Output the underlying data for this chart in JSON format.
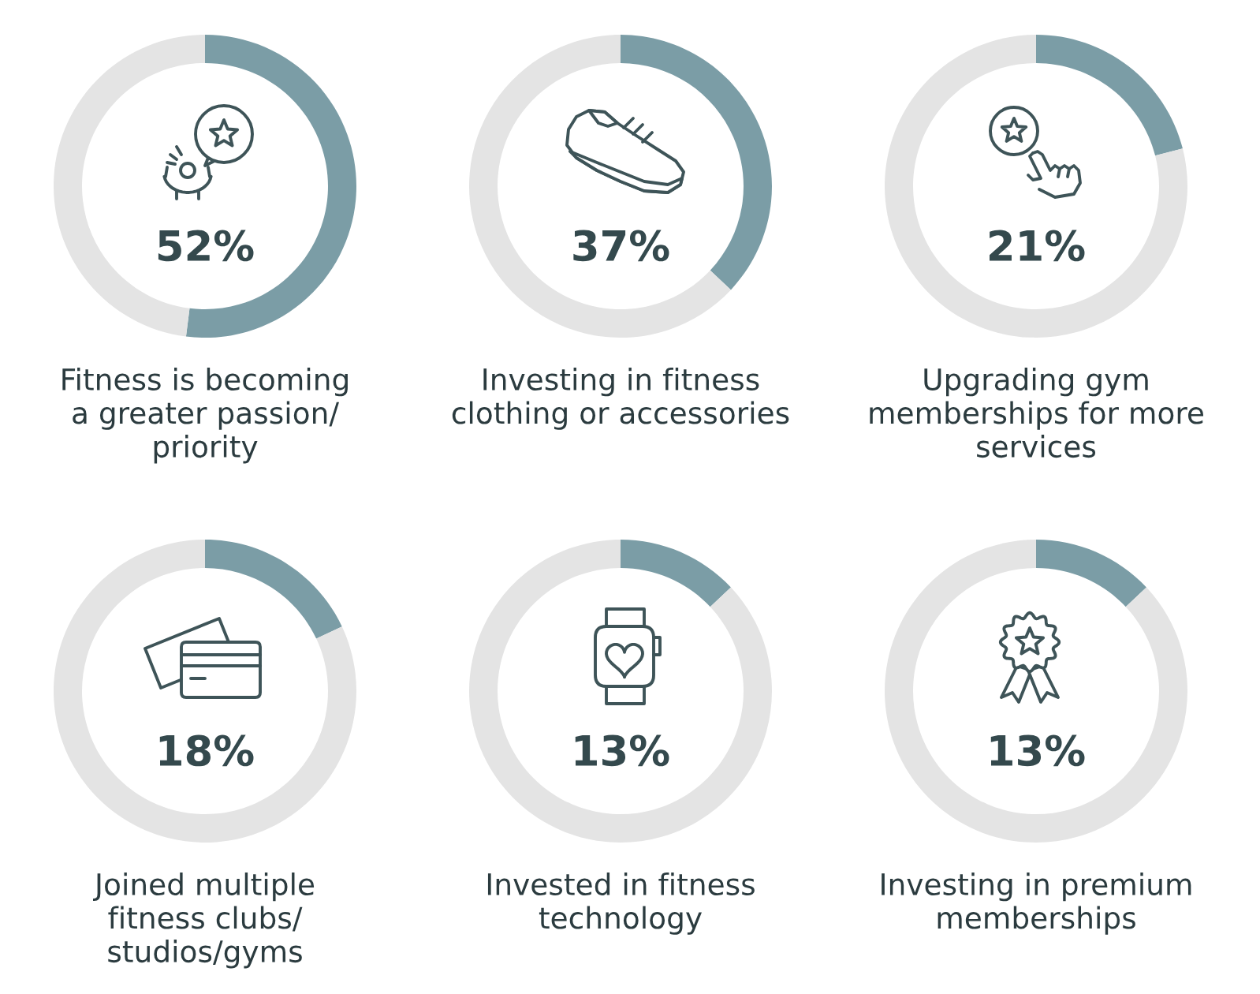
{
  "chart_data": [
    {
      "type": "donut",
      "title": "Fitness is becoming\na greater passion/\npriority",
      "categories": [
        null,
        null
      ],
      "values": [
        52,
        48
      ],
      "colors": [
        "#7b9da6",
        "#e4e4e4"
      ],
      "annotations": [
        "52%"
      ]
    },
    {
      "type": "donut",
      "title": "Investing in fitness\nclothing or accessories",
      "categories": [
        null,
        null
      ],
      "values": [
        37,
        63
      ],
      "colors": [
        "#7b9da6",
        "#e4e4e4"
      ],
      "annotations": [
        "37%"
      ]
    },
    {
      "type": "donut",
      "title": "Upgrading gym\nmemberships for more\nservices",
      "categories": [
        null,
        null
      ],
      "values": [
        21,
        79
      ],
      "colors": [
        "#7b9da6",
        "#e4e4e4"
      ],
      "annotations": [
        "21%"
      ]
    },
    {
      "type": "donut",
      "title": "Joined multiple\nfitness clubs/\nstudios/gyms",
      "categories": [
        null,
        null
      ],
      "values": [
        18,
        82
      ],
      "colors": [
        "#7b9da6",
        "#e4e4e4"
      ],
      "annotations": [
        "18%"
      ]
    },
    {
      "type": "donut",
      "title": "Invested in fitness\ntechnology",
      "categories": [
        null,
        null
      ],
      "values": [
        13,
        87
      ],
      "colors": [
        "#7b9da6",
        "#e4e4e4"
      ],
      "annotations": [
        "13%"
      ]
    },
    {
      "type": "donut",
      "title": "Investing in premium\nmemberships",
      "categories": [
        null,
        null
      ],
      "values": [
        13,
        87
      ],
      "colors": [
        "#7b9da6",
        "#e4e4e4"
      ],
      "annotations": [
        "13%"
      ]
    }
  ]
}
